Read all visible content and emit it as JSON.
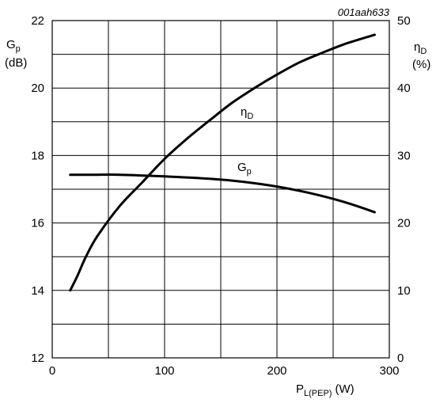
{
  "chart_data": {
    "type": "line",
    "figure_code": "001aah633",
    "x_axis": {
      "label": "P",
      "label_sub": "L(PEP)",
      "unit": "(W)",
      "lim": [
        0,
        300
      ],
      "ticks": [
        0,
        100,
        200,
        300
      ],
      "grid_step": 50
    },
    "y_axis_left": {
      "label": "G",
      "label_sub": "p",
      "unit": "(dB)",
      "lim": [
        12,
        22
      ],
      "ticks": [
        12,
        14,
        16,
        18,
        20,
        22
      ],
      "grid_step": 1
    },
    "y_axis_right": {
      "label": "η",
      "label_sub": "D",
      "unit": "(%)",
      "lim": [
        0,
        50
      ],
      "ticks": [
        0,
        10,
        20,
        30,
        40,
        50
      ]
    },
    "grid": true,
    "series": [
      {
        "name": "G",
        "name_sub": "p",
        "axis": "left",
        "x": [
          16,
          40,
          60,
          100,
          140,
          170,
          200,
          230,
          260,
          287
        ],
        "values": [
          17.43,
          17.43,
          17.43,
          17.38,
          17.31,
          17.22,
          17.08,
          16.88,
          16.62,
          16.32
        ]
      },
      {
        "name": "η",
        "name_sub": "D",
        "axis": "right",
        "x": [
          16,
          22,
          30,
          40,
          60,
          80,
          100,
          120,
          140,
          160,
          180,
          200,
          220,
          240,
          260,
          287
        ],
        "values": [
          10,
          12,
          15,
          18,
          22.5,
          26,
          29.5,
          32.5,
          35.2,
          37.8,
          40,
          42,
          43.8,
          45.2,
          46.5,
          47.9
        ]
      }
    ]
  }
}
